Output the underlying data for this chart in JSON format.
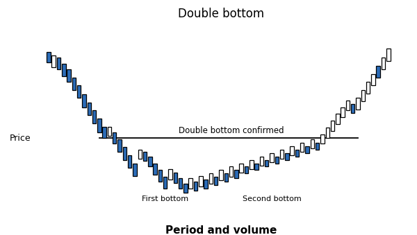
{
  "title": "Double bottom",
  "xlabel": "Period and volume",
  "ylabel": "Price",
  "neckline_label": "Double bottom confirmed",
  "first_bottom_label": "First bottom",
  "second_bottom_label": "Second bottom",
  "background_color": "#ffffff",
  "blue_color": "#2b6cb8",
  "white_color": "#ffffff",
  "edge_color": "#000000",
  "candles": [
    {
      "x": 1,
      "open": 7.5,
      "close": 6.6,
      "blue": true
    },
    {
      "x": 2,
      "open": 7.2,
      "close": 6.2,
      "blue": false
    },
    {
      "x": 3,
      "open": 7.0,
      "close": 6.0,
      "blue": true
    },
    {
      "x": 4,
      "open": 6.5,
      "close": 5.4,
      "blue": true
    },
    {
      "x": 5,
      "open": 6.0,
      "close": 4.9,
      "blue": true
    },
    {
      "x": 6,
      "open": 5.3,
      "close": 4.2,
      "blue": true
    },
    {
      "x": 7,
      "open": 4.6,
      "close": 3.5,
      "blue": true
    },
    {
      "x": 8,
      "open": 3.8,
      "close": 2.7,
      "blue": true
    },
    {
      "x": 9,
      "open": 3.1,
      "close": 2.0,
      "blue": true
    },
    {
      "x": 10,
      "open": 2.4,
      "close": 1.3,
      "blue": true
    },
    {
      "x": 11,
      "open": 1.7,
      "close": 0.5,
      "blue": true
    },
    {
      "x": 12,
      "open": 1.0,
      "close": 0.0,
      "blue": true
    },
    {
      "x": 13,
      "open": 0.2,
      "close": 1.0,
      "blue": false
    },
    {
      "x": 14,
      "open": 0.5,
      "close": -0.5,
      "blue": true
    },
    {
      "x": 15,
      "open": -0.1,
      "close": -1.2,
      "blue": true
    },
    {
      "x": 16,
      "open": -0.8,
      "close": -1.9,
      "blue": true
    },
    {
      "x": 17,
      "open": -1.5,
      "close": -2.6,
      "blue": true
    },
    {
      "x": 18,
      "open": -2.2,
      "close": -3.3,
      "blue": true
    },
    {
      "x": 19,
      "open": -1.8,
      "close": -1.0,
      "blue": false
    },
    {
      "x": 20,
      "open": -1.2,
      "close": -2.0,
      "blue": true
    },
    {
      "x": 21,
      "open": -1.6,
      "close": -2.5,
      "blue": true
    },
    {
      "x": 22,
      "open": -2.2,
      "close": -3.2,
      "blue": true
    },
    {
      "x": 23,
      "open": -2.8,
      "close": -3.8,
      "blue": true
    },
    {
      "x": 24,
      "open": -3.4,
      "close": -4.4,
      "blue": true
    },
    {
      "x": 25,
      "open": -3.6,
      "close": -2.7,
      "blue": false
    },
    {
      "x": 26,
      "open": -3.0,
      "close": -3.9,
      "blue": true
    },
    {
      "x": 27,
      "open": -3.5,
      "close": -4.4,
      "blue": true
    },
    {
      "x": 28,
      "open": -4.0,
      "close": -4.8,
      "blue": true
    },
    {
      "x": 29,
      "open": -4.4,
      "close": -3.5,
      "blue": false
    },
    {
      "x": 30,
      "open": -3.8,
      "close": -4.6,
      "blue": true
    },
    {
      "x": 31,
      "open": -4.2,
      "close": -3.3,
      "blue": false
    },
    {
      "x": 32,
      "open": -3.6,
      "close": -4.4,
      "blue": true
    },
    {
      "x": 33,
      "open": -4.0,
      "close": -3.1,
      "blue": false
    },
    {
      "x": 34,
      "open": -3.4,
      "close": -4.1,
      "blue": true
    },
    {
      "x": 35,
      "open": -3.7,
      "close": -2.8,
      "blue": false
    },
    {
      "x": 36,
      "open": -3.1,
      "close": -3.8,
      "blue": true
    },
    {
      "x": 37,
      "open": -3.4,
      "close": -2.5,
      "blue": false
    },
    {
      "x": 38,
      "open": -2.8,
      "close": -3.5,
      "blue": true
    },
    {
      "x": 39,
      "open": -3.0,
      "close": -2.2,
      "blue": false
    },
    {
      "x": 40,
      "open": -2.5,
      "close": -3.1,
      "blue": true
    },
    {
      "x": 41,
      "open": -2.7,
      "close": -1.9,
      "blue": false
    },
    {
      "x": 42,
      "open": -2.2,
      "close": -2.8,
      "blue": true
    },
    {
      "x": 43,
      "open": -2.4,
      "close": -1.6,
      "blue": false
    },
    {
      "x": 44,
      "open": -1.9,
      "close": -2.5,
      "blue": true
    },
    {
      "x": 45,
      "open": -2.1,
      "close": -1.3,
      "blue": false
    },
    {
      "x": 46,
      "open": -1.6,
      "close": -2.2,
      "blue": true
    },
    {
      "x": 47,
      "open": -1.8,
      "close": -1.0,
      "blue": false
    },
    {
      "x": 48,
      "open": -1.3,
      "close": -1.9,
      "blue": true
    },
    {
      "x": 49,
      "open": -1.5,
      "close": -0.7,
      "blue": false
    },
    {
      "x": 50,
      "open": -1.0,
      "close": -1.6,
      "blue": true
    },
    {
      "x": 51,
      "open": -1.2,
      "close": -0.4,
      "blue": false
    },
    {
      "x": 52,
      "open": -0.7,
      "close": -1.3,
      "blue": true
    },
    {
      "x": 53,
      "open": -0.9,
      "close": -0.1,
      "blue": false
    },
    {
      "x": 54,
      "open": -0.4,
      "close": -1.0,
      "blue": true
    },
    {
      "x": 55,
      "open": -0.5,
      "close": 0.3,
      "blue": false
    },
    {
      "x": 56,
      "open": 0.0,
      "close": 0.9,
      "blue": false
    },
    {
      "x": 57,
      "open": 0.6,
      "close": 1.5,
      "blue": false
    },
    {
      "x": 58,
      "open": 1.2,
      "close": 2.1,
      "blue": false
    },
    {
      "x": 59,
      "open": 1.8,
      "close": 2.7,
      "blue": false
    },
    {
      "x": 60,
      "open": 2.4,
      "close": 3.3,
      "blue": false
    },
    {
      "x": 61,
      "open": 3.0,
      "close": 2.2,
      "blue": true
    },
    {
      "x": 62,
      "open": 2.5,
      "close": 3.5,
      "blue": false
    },
    {
      "x": 63,
      "open": 3.2,
      "close": 4.2,
      "blue": false
    },
    {
      "x": 64,
      "open": 3.9,
      "close": 4.9,
      "blue": false
    },
    {
      "x": 65,
      "open": 4.6,
      "close": 5.6,
      "blue": false
    },
    {
      "x": 66,
      "open": 5.3,
      "close": 6.3,
      "blue": true
    },
    {
      "x": 67,
      "open": 6.0,
      "close": 7.0,
      "blue": false
    },
    {
      "x": 68,
      "open": 6.7,
      "close": 7.8,
      "blue": false
    }
  ],
  "neckline_y": 0.0,
  "neckline_x_start": 11,
  "neckline_x_end": 62,
  "first_bottom_x": 24,
  "second_bottom_x": 43,
  "xlim": [
    -2,
    72
  ],
  "ylim": [
    -6.0,
    10.0
  ]
}
